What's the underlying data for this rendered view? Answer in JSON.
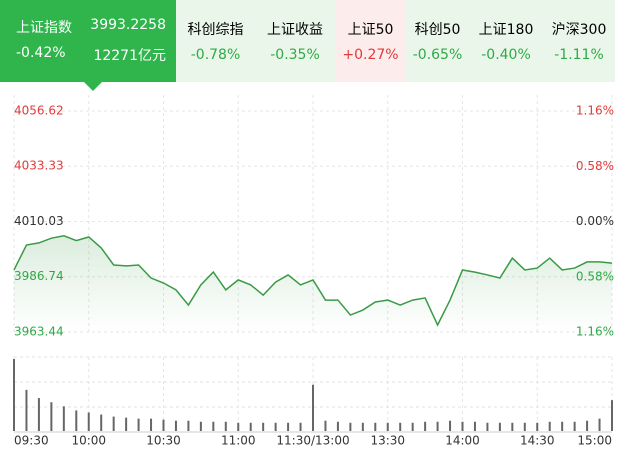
{
  "tabs": [
    {
      "name": "上证指数",
      "price": "3993.2258",
      "change": "-0.42%",
      "turnover": "12271亿元"
    },
    {
      "name": "科创综指",
      "change": "-0.78%"
    },
    {
      "name": "上证收益",
      "change": "-0.35%"
    },
    {
      "name": "上证50",
      "change": "+0.27%"
    },
    {
      "name": "科创50",
      "change": "-0.65%"
    },
    {
      "name": "上证180",
      "change": "-0.40%"
    },
    {
      "name": "沪深300",
      "change": "-1.11%"
    }
  ],
  "chart_data": {
    "type": "line",
    "up_color": "#e03c3c",
    "down_color": "#2faa46",
    "flat_color": "#333333",
    "x": [
      0,
      5,
      10,
      15,
      20,
      25,
      30,
      35,
      40,
      45,
      50,
      55,
      60,
      65,
      70,
      75,
      80,
      85,
      90,
      95,
      100,
      105,
      110,
      115,
      120,
      125,
      130,
      135,
      140,
      145,
      150,
      155,
      160,
      165,
      170,
      175,
      180,
      185,
      190,
      195,
      200,
      205,
      210,
      215,
      220,
      225,
      230,
      235,
      240
    ],
    "xlim": [
      0,
      240
    ],
    "xticks": [
      {
        "value": 0,
        "label": "09:30"
      },
      {
        "value": 30,
        "label": "10:00"
      },
      {
        "value": 60,
        "label": "10:30"
      },
      {
        "value": 90,
        "label": "11:00"
      },
      {
        "value": 120,
        "label": "11:30/13:00"
      },
      {
        "value": 150,
        "label": "13:30"
      },
      {
        "value": 180,
        "label": "14:00"
      },
      {
        "value": 210,
        "label": "14:30"
      },
      {
        "value": 240,
        "label": "15:00"
      }
    ],
    "ylim": [
      3963.44,
      4056.62
    ],
    "yticks": [
      4056.62,
      4033.33,
      4010.03,
      3986.74,
      3963.44
    ],
    "y2lim": [
      -1.16,
      1.16
    ],
    "y2ticks": [
      {
        "value": 1.16,
        "label": "1.16%"
      },
      {
        "value": 0.58,
        "label": "0.58%"
      },
      {
        "value": 0,
        "label": "0.00%"
      },
      {
        "value": -0.58,
        "label": "0.58%"
      },
      {
        "value": -1.16,
        "label": "1.16%"
      }
    ],
    "series": [
      {
        "color": "#3a9a46",
        "values": [
          3989.6,
          4000.1,
          4001,
          4003,
          4004,
          4002,
          4003.5,
          3998.9,
          3991.7,
          3991.3,
          3991.7,
          3986.2,
          3984.1,
          3981.2,
          3974.8,
          3983.3,
          3988.7,
          3981.2,
          3985.4,
          3983.3,
          3979.0,
          3984.5,
          3987.5,
          3983.3,
          3985.4,
          3976.9,
          3976.9,
          3970.6,
          3972.7,
          3976.1,
          3976.9,
          3974.8,
          3976.9,
          3977.8,
          3966.4,
          3976.9,
          3989.6,
          3988.7,
          3987.5,
          3986.2,
          3994.6,
          3989.6,
          3990.4,
          3994.6,
          3989.6,
          3990.4,
          3993.0,
          3993.0,
          3992.5
        ]
      }
    ],
    "volume": [
      70,
      40,
      32,
      28,
      24,
      20,
      18,
      16,
      14,
      13,
      12,
      12,
      11,
      10,
      10,
      9,
      9,
      9,
      8,
      8,
      8,
      8,
      8,
      8,
      45,
      10,
      9,
      8,
      8,
      8,
      8,
      8,
      8,
      9,
      9,
      10,
      9,
      9,
      8,
      8,
      8,
      8,
      8,
      9,
      9,
      9,
      10,
      12,
      30
    ],
    "volume_color": "#666666",
    "grid": true
  }
}
